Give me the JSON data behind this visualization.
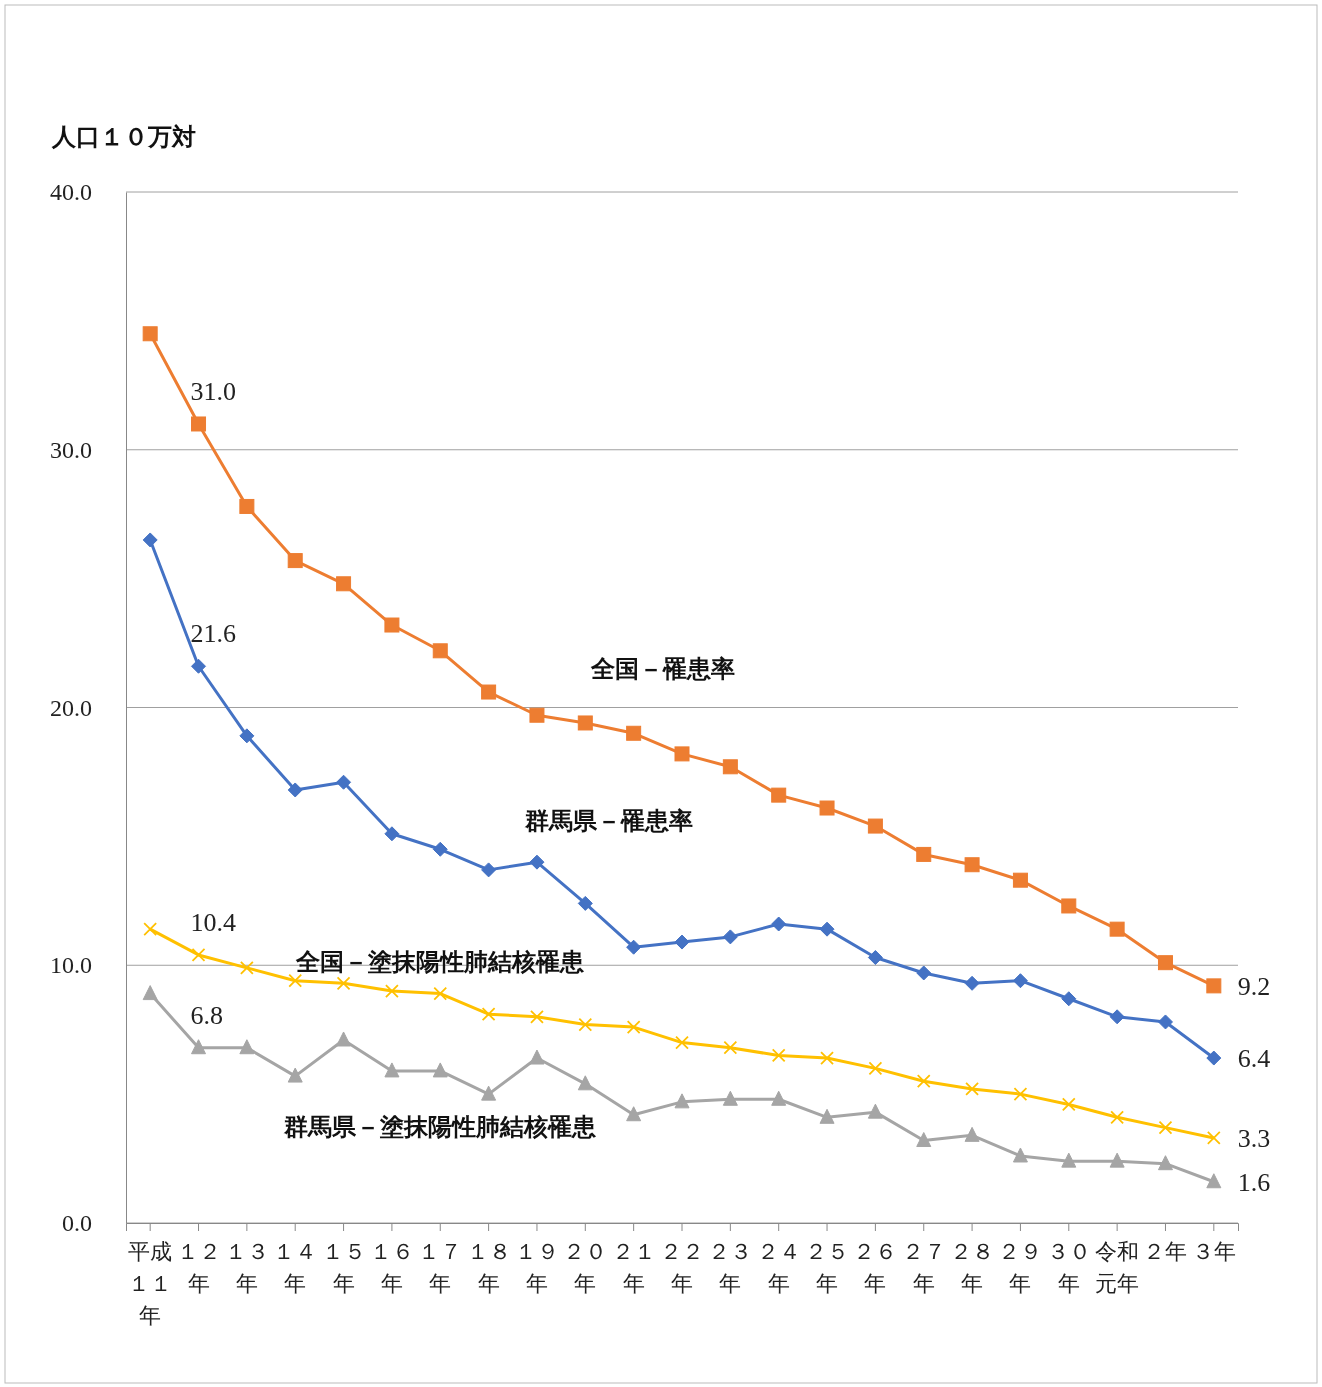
{
  "chart_data": {
    "type": "line",
    "ylabel": "人口１０万対",
    "categories": [
      "平成１１年",
      "１２年",
      "１３年",
      "１４年",
      "１５年",
      "１６年",
      "１７年",
      "１８年",
      "１９年",
      "２０年",
      "２１年",
      "２２年",
      "２３年",
      "２４年",
      "２５年",
      "２６年",
      "２７年",
      "２８年",
      "２９年",
      "３０年",
      "令和元年",
      "２年",
      "３年"
    ],
    "ylim": [
      0,
      40
    ],
    "yticks": [
      {
        "value": 0,
        "label": "0.0"
      },
      {
        "value": 10,
        "label": "10.0"
      },
      {
        "value": 20,
        "label": "20.0"
      },
      {
        "value": 30,
        "label": "30.0"
      },
      {
        "value": 40,
        "label": "40.0"
      }
    ],
    "grid": "y",
    "series": [
      {
        "name": "全国－罹患率",
        "color": "#ed7d31",
        "marker": "square",
        "values": [
          34.5,
          31.0,
          27.8,
          25.7,
          24.8,
          23.2,
          22.2,
          20.6,
          19.7,
          19.4,
          19.0,
          18.2,
          17.7,
          16.6,
          16.1,
          15.4,
          14.3,
          13.9,
          13.3,
          12.3,
          11.4,
          10.1,
          9.2
        ],
        "value_labels": [
          null,
          "31.0",
          null,
          null,
          null,
          null,
          null,
          null,
          null,
          null,
          null,
          null,
          null,
          null,
          null,
          null,
          null,
          null,
          null,
          null,
          null,
          null,
          "9.2"
        ]
      },
      {
        "name": "群馬県－罹患率",
        "color": "#4472c4",
        "marker": "diamond",
        "values": [
          26.5,
          21.6,
          18.9,
          16.8,
          17.1,
          15.1,
          14.5,
          13.7,
          14.0,
          12.4,
          10.7,
          10.9,
          11.1,
          11.6,
          11.4,
          10.3,
          9.7,
          9.3,
          9.4,
          8.7,
          8.0,
          7.8,
          6.4
        ],
        "value_labels": [
          null,
          "21.6",
          null,
          null,
          null,
          null,
          null,
          null,
          null,
          null,
          null,
          null,
          null,
          null,
          null,
          null,
          null,
          null,
          null,
          null,
          null,
          null,
          "6.4"
        ]
      },
      {
        "name": "全国－塗抹陽性肺結核罹患",
        "color": "#ffc000",
        "marker": "cross",
        "values": [
          11.4,
          10.4,
          9.9,
          9.4,
          9.3,
          9.0,
          8.9,
          8.1,
          8.0,
          7.7,
          7.6,
          7.0,
          6.8,
          6.5,
          6.4,
          6.0,
          5.5,
          5.2,
          5.0,
          4.6,
          4.1,
          3.7,
          3.3
        ],
        "value_labels": [
          null,
          "10.4",
          null,
          null,
          null,
          null,
          null,
          null,
          null,
          null,
          null,
          null,
          null,
          null,
          null,
          null,
          null,
          null,
          null,
          null,
          null,
          null,
          "3.3"
        ]
      },
      {
        "name": "群馬県－塗抹陽性肺結核罹患",
        "color": "#a5a5a5",
        "marker": "triangle",
        "values": [
          8.9,
          6.8,
          6.8,
          5.7,
          7.1,
          5.9,
          5.9,
          5.0,
          6.4,
          5.4,
          4.2,
          4.7,
          4.8,
          4.8,
          4.1,
          4.3,
          3.2,
          3.4,
          2.6,
          2.4,
          2.4,
          2.3,
          1.6
        ],
        "value_labels": [
          null,
          "6.8",
          null,
          null,
          null,
          null,
          null,
          null,
          null,
          null,
          null,
          null,
          null,
          null,
          null,
          null,
          null,
          null,
          null,
          null,
          null,
          null,
          "1.6"
        ]
      }
    ]
  }
}
